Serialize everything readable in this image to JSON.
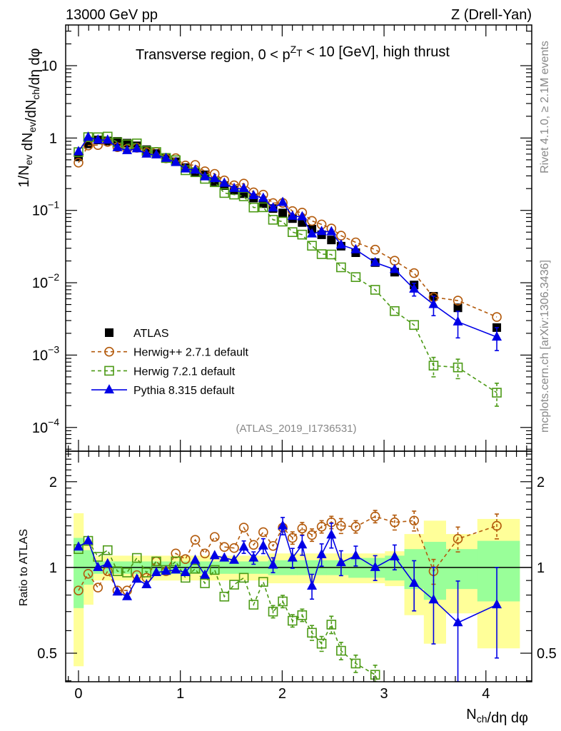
{
  "header": {
    "left": "13000 GeV pp",
    "right": "Z (Drell-Yan)"
  },
  "side": {
    "rivet": "Rivet 4.1.0, ≥ 2.1M events",
    "mcplots": "mcplots.cern.ch [arXiv:1306.3436]"
  },
  "watermark": "(ATLAS_2019_I1736531)",
  "chart_data": {
    "type": "scatter",
    "title_parts": [
      {
        "t": "Transverse region, 0 < p"
      },
      {
        "sup": "Z"
      },
      {
        "sub": "T"
      },
      {
        "t": " < 10 [GeV], high thrust"
      }
    ],
    "ylabel_parts": [
      {
        "t": "1/N"
      },
      {
        "sub": "ev"
      },
      {
        "t": " dN"
      },
      {
        "sub": "ev"
      },
      {
        "t": "/dN"
      },
      {
        "sub": "ch"
      },
      {
        "t": "/dη dφ"
      }
    ],
    "xlabel_parts": [
      {
        "t": "N"
      },
      {
        "sub": "ch"
      },
      {
        "t": "/dη dφ"
      }
    ],
    "ratio_ylabel": "Ratio to ATLAS",
    "xlim": [
      -0.126,
      4.45
    ],
    "ylim": [
      4.7e-05,
      36.5
    ],
    "ratio_ylim": [
      0.397,
      2.56
    ],
    "yscale": "log",
    "xticks": [
      {
        "v": 0,
        "label": "0"
      },
      {
        "v": 1,
        "label": "1"
      },
      {
        "v": 2,
        "label": "2"
      },
      {
        "v": 3,
        "label": "3"
      },
      {
        "v": 4,
        "label": "4"
      }
    ],
    "yticks": [
      {
        "v": 10,
        "base": "10",
        "exp": ""
      },
      {
        "v": 1,
        "base": "1",
        "exp": ""
      },
      {
        "v": 0.1,
        "base": "10",
        "exp": "−1"
      },
      {
        "v": 0.01,
        "base": "10",
        "exp": "−2"
      },
      {
        "v": 0.001,
        "base": "10",
        "exp": "−3"
      },
      {
        "v": 0.0001,
        "base": "10",
        "exp": "−4"
      }
    ],
    "ratio_yticks": [
      {
        "v": 2,
        "label": "2"
      },
      {
        "v": 1,
        "label": "1"
      },
      {
        "v": 0.5,
        "label": "0.5"
      }
    ],
    "legend_position": "lower-left",
    "x": [
      0,
      0.095,
      0.191,
      0.286,
      0.382,
      0.477,
      0.573,
      0.668,
      0.764,
      0.859,
      0.955,
      1.05,
      1.146,
      1.241,
      1.337,
      1.432,
      1.528,
      1.623,
      1.719,
      1.814,
      1.91,
      2.005,
      2.101,
      2.196,
      2.292,
      2.387,
      2.483,
      2.578,
      2.722,
      2.913,
      3.104,
      3.295,
      3.486,
      3.725,
      4.107
    ],
    "data": {
      "name": "ATLAS",
      "color": "#000000",
      "values": [
        0.55,
        0.83,
        0.94,
        0.91,
        0.9,
        0.85,
        0.78,
        0.69,
        0.61,
        0.54,
        0.47,
        0.39,
        0.34,
        0.31,
        0.25,
        0.22,
        0.19,
        0.17,
        0.148,
        0.124,
        0.106,
        0.092,
        0.077,
        0.068,
        0.055,
        0.046,
        0.039,
        0.032,
        0.026,
        0.019,
        0.014,
        0.0093,
        0.0065,
        0.0045,
        0.0024
      ],
      "band_inner": [
        [
          0.72,
          1.27
        ],
        [
          0.87,
          1.15
        ],
        [
          0.95,
          1.05
        ],
        [
          0.95,
          1.05
        ],
        [
          0.95,
          1.05
        ],
        [
          0.95,
          1.05
        ],
        [
          0.95,
          1.05
        ],
        [
          0.95,
          1.05
        ],
        [
          0.95,
          1.05
        ],
        [
          0.95,
          1.05
        ],
        [
          0.95,
          1.05
        ],
        [
          0.95,
          1.05
        ],
        [
          0.95,
          1.05
        ],
        [
          0.95,
          1.05
        ],
        [
          0.95,
          1.05
        ],
        [
          0.95,
          1.05
        ],
        [
          0.95,
          1.05
        ],
        [
          0.95,
          1.05
        ],
        [
          0.95,
          1.05
        ],
        [
          0.95,
          1.05
        ],
        [
          0.94,
          1.06
        ],
        [
          0.94,
          1.06
        ],
        [
          0.94,
          1.06
        ],
        [
          0.94,
          1.06
        ],
        [
          0.94,
          1.06
        ],
        [
          0.94,
          1.06
        ],
        [
          0.94,
          1.06
        ],
        [
          0.94,
          1.06
        ],
        [
          0.92,
          1.08
        ],
        [
          0.92,
          1.08
        ],
        [
          0.9,
          1.1
        ],
        [
          0.84,
          1.16
        ],
        [
          0.77,
          1.23
        ],
        [
          0.84,
          1.16
        ],
        [
          0.76,
          1.24
        ]
      ],
      "band_outer": [
        [
          0.45,
          1.55
        ],
        [
          0.74,
          1.25
        ],
        [
          0.9,
          1.1
        ],
        [
          0.9,
          1.1
        ],
        [
          0.9,
          1.1
        ],
        [
          0.9,
          1.1
        ],
        [
          0.9,
          1.1
        ],
        [
          0.9,
          1.1
        ],
        [
          0.9,
          1.1
        ],
        [
          0.9,
          1.1
        ],
        [
          0.9,
          1.1
        ],
        [
          0.9,
          1.1
        ],
        [
          0.9,
          1.1
        ],
        [
          0.9,
          1.1
        ],
        [
          0.9,
          1.1
        ],
        [
          0.9,
          1.1
        ],
        [
          0.9,
          1.1
        ],
        [
          0.9,
          1.1
        ],
        [
          0.9,
          1.1
        ],
        [
          0.9,
          1.1
        ],
        [
          0.88,
          1.12
        ],
        [
          0.88,
          1.12
        ],
        [
          0.88,
          1.12
        ],
        [
          0.88,
          1.12
        ],
        [
          0.88,
          1.12
        ],
        [
          0.88,
          1.12
        ],
        [
          0.88,
          1.12
        ],
        [
          0.88,
          1.12
        ],
        [
          0.88,
          1.12
        ],
        [
          0.88,
          1.12
        ],
        [
          0.86,
          1.14
        ],
        [
          0.68,
          1.31
        ],
        [
          0.54,
          1.46
        ],
        [
          0.69,
          1.31
        ],
        [
          0.52,
          1.48
        ]
      ]
    },
    "series": [
      {
        "name": "Herwig++ 2.7.1 default",
        "color": "#b35a0c",
        "marker": "circle",
        "dashed": true,
        "ratio": [
          0.83,
          0.95,
          0.85,
          0.97,
          0.83,
          0.83,
          0.94,
          0.92,
          1.05,
          0.97,
          1.12,
          1.07,
          1.25,
          1.12,
          1.28,
          1.18,
          1.17,
          1.38,
          1.2,
          1.33,
          1.19,
          1.38,
          1.27,
          1.37,
          1.3,
          1.39,
          1.44,
          1.4,
          1.39,
          1.51,
          1.44,
          1.46,
          0.97,
          1.26,
          1.4
        ],
        "rel_err": [
          0.02,
          0.02,
          0.02,
          0.02,
          0.02,
          0.02,
          0.02,
          0.02,
          0.02,
          0.02,
          0.02,
          0.03,
          0.03,
          0.03,
          0.03,
          0.03,
          0.03,
          0.03,
          0.04,
          0.04,
          0.04,
          0.04,
          0.05,
          0.05,
          0.05,
          0.05,
          0.05,
          0.06,
          0.05,
          0.05,
          0.06,
          0.08,
          0.1,
          0.1,
          0.1
        ]
      },
      {
        "name": "Herwig 7.2.1 default",
        "color": "#4c9a16",
        "marker": "square",
        "dashed": true,
        "ratio": [
          1.16,
          1.24,
          1.09,
          1.15,
          0.97,
          0.96,
          1.08,
          0.96,
          1.05,
          0.98,
          1.05,
          0.92,
          0.99,
          0.88,
          0.98,
          0.79,
          0.87,
          0.92,
          0.74,
          0.89,
          0.7,
          0.76,
          0.65,
          0.68,
          0.59,
          0.54,
          0.63,
          0.51,
          0.46,
          0.42,
          0.29,
          0.28,
          0.11,
          0.15,
          0.126
        ],
        "rel_err": [
          0.02,
          0.02,
          0.02,
          0.02,
          0.02,
          0.02,
          0.02,
          0.02,
          0.02,
          0.02,
          0.02,
          0.03,
          0.03,
          0.03,
          0.03,
          0.03,
          0.04,
          0.04,
          0.04,
          0.04,
          0.05,
          0.05,
          0.05,
          0.05,
          0.06,
          0.06,
          0.07,
          0.07,
          0.07,
          0.08,
          0.1,
          0.15,
          0.3,
          0.3,
          0.35
        ]
      },
      {
        "name": "Pythia 8.315 default",
        "color": "#0000e6",
        "marker": "triangle",
        "dashed": false,
        "ratio": [
          1.18,
          1.24,
          1.0,
          1.03,
          0.82,
          0.79,
          0.91,
          0.87,
          0.96,
          0.97,
          0.98,
          0.96,
          1.06,
          0.94,
          1.1,
          1.08,
          1.06,
          1.18,
          1.08,
          1.19,
          1.02,
          1.4,
          1.08,
          1.2,
          0.86,
          1.11,
          1.3,
          1.04,
          1.1,
          1.0,
          1.09,
          0.88,
          0.77,
          0.64,
          0.74
        ],
        "rel_err": [
          0.03,
          0.02,
          0.02,
          0.02,
          0.02,
          0.02,
          0.02,
          0.02,
          0.02,
          0.02,
          0.02,
          0.03,
          0.03,
          0.03,
          0.04,
          0.04,
          0.04,
          0.05,
          0.05,
          0.06,
          0.06,
          0.07,
          0.08,
          0.08,
          0.1,
          0.09,
          0.1,
          0.1,
          0.08,
          0.1,
          0.1,
          0.2,
          0.3,
          0.4,
          0.35
        ]
      }
    ]
  }
}
